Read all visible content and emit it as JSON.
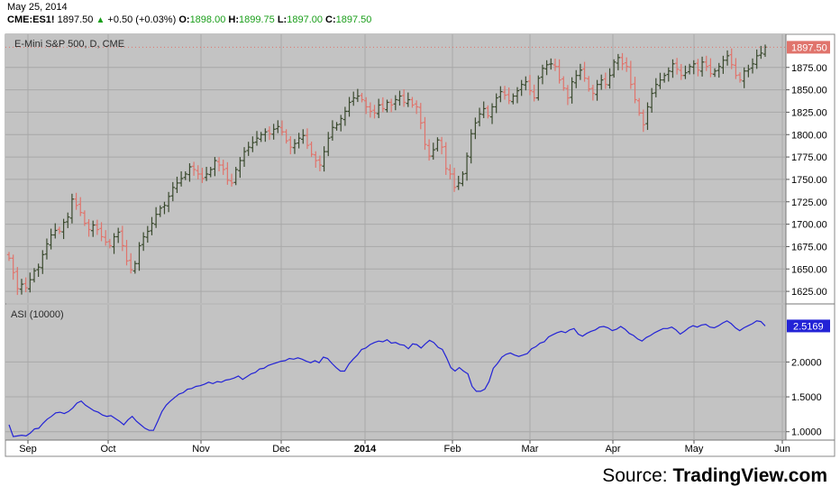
{
  "header": {
    "date": "May 25, 2014",
    "symbol": "CME:ES1!",
    "last": "1897.50",
    "change": "+0.50 (+0.03%)",
    "o_label": "O:",
    "o_value": "1898.00",
    "h_label": "H:",
    "h_value": "1899.75",
    "l_label": "L:",
    "l_value": "1897.00",
    "c_label": "C:",
    "c_value": "1897.50"
  },
  "source": {
    "prefix": "Source: ",
    "brand": "TradingView.com"
  },
  "colors": {
    "bg": "#c3c3c3",
    "up": "#3a4a2e",
    "down": "#e0746c",
    "asi": "#2323d6",
    "price_badge": "#e0746c",
    "asi_badge": "#2323d6"
  },
  "chart_data": [
    {
      "type": "ohlc",
      "title": "E-Mini S&P 500, D, CME",
      "ylim": [
        1612,
        1912
      ],
      "yticks": [
        "1625.00",
        "1650.00",
        "1675.00",
        "1700.00",
        "1725.00",
        "1750.00",
        "1775.00",
        "1800.00",
        "1825.00",
        "1850.00",
        "1875.00"
      ],
      "last_price_label": "1897.50",
      "x_ticks": [
        "Sep",
        "Oct",
        "Nov",
        "Dec",
        "2014",
        "Feb",
        "Mar",
        "Apr",
        "May",
        "Jun"
      ],
      "closes": [
        1662,
        1646,
        1628,
        1633,
        1629,
        1638,
        1648,
        1652,
        1666,
        1678,
        1688,
        1693,
        1692,
        1702,
        1708,
        1728,
        1721,
        1713,
        1701,
        1694,
        1699,
        1694,
        1686,
        1680,
        1676,
        1686,
        1691,
        1676,
        1659,
        1649,
        1656,
        1676,
        1686,
        1692,
        1701,
        1711,
        1718,
        1721,
        1731,
        1741,
        1746,
        1751,
        1756,
        1764,
        1761,
        1756,
        1751,
        1756,
        1761,
        1771,
        1766,
        1761,
        1749,
        1746,
        1761,
        1771,
        1781,
        1786,
        1791,
        1796,
        1800,
        1803,
        1801,
        1806,
        1809,
        1803,
        1793,
        1786,
        1790,
        1796,
        1799,
        1788,
        1778,
        1771,
        1766,
        1781,
        1796,
        1808,
        1811,
        1818,
        1826,
        1836,
        1841,
        1843,
        1839,
        1831,
        1826,
        1824,
        1833,
        1829,
        1836,
        1833,
        1839,
        1843,
        1836,
        1839,
        1833,
        1831,
        1813,
        1789,
        1776,
        1783,
        1794,
        1786,
        1762,
        1756,
        1741,
        1746,
        1756,
        1776,
        1801,
        1813,
        1823,
        1829,
        1821,
        1831,
        1841,
        1848,
        1844,
        1838,
        1843,
        1849,
        1856,
        1859,
        1849,
        1841,
        1863,
        1874,
        1878,
        1879,
        1876,
        1861,
        1852,
        1841,
        1859,
        1866,
        1872,
        1863,
        1851,
        1846,
        1856,
        1861,
        1856,
        1866,
        1881,
        1886,
        1879,
        1876,
        1856,
        1839,
        1824,
        1811,
        1831,
        1846,
        1856,
        1861,
        1866,
        1871,
        1879,
        1873,
        1866,
        1869,
        1876,
        1879,
        1872,
        1881,
        1876,
        1868,
        1871,
        1876,
        1883,
        1888,
        1878,
        1866,
        1861,
        1871,
        1873,
        1879,
        1888,
        1891,
        1897.5
      ]
    },
    {
      "type": "line",
      "title": "ASI (10000)",
      "ylim": [
        0.88,
        2.82
      ],
      "yticks": [
        "1.0000",
        "1.5000",
        "2.0000"
      ],
      "last_value_label": "2.5169",
      "series": [
        {
          "values": [
            1.1,
            0.93,
            0.94,
            0.95,
            0.94,
            0.98,
            1.04,
            1.05,
            1.12,
            1.18,
            1.22,
            1.27,
            1.28,
            1.26,
            1.29,
            1.34,
            1.41,
            1.44,
            1.38,
            1.34,
            1.3,
            1.28,
            1.24,
            1.22,
            1.23,
            1.19,
            1.15,
            1.1,
            1.17,
            1.22,
            1.15,
            1.1,
            1.05,
            1.02,
            1.02,
            1.15,
            1.29,
            1.38,
            1.44,
            1.49,
            1.54,
            1.56,
            1.61,
            1.62,
            1.65,
            1.66,
            1.68,
            1.71,
            1.69,
            1.72,
            1.71,
            1.74,
            1.75,
            1.77,
            1.8,
            1.75,
            1.79,
            1.83,
            1.85,
            1.9,
            1.91,
            1.95,
            1.97,
            1.99,
            2.01,
            2.02,
            2.05,
            2.04,
            2.06,
            2.04,
            2.01,
            1.99,
            2.02,
            1.99,
            2.07,
            2.05,
            1.98,
            1.92,
            1.87,
            1.87,
            1.97,
            2.04,
            2.1,
            2.18,
            2.2,
            2.25,
            2.28,
            2.3,
            2.29,
            2.32,
            2.27,
            2.28,
            2.25,
            2.24,
            2.19,
            2.26,
            2.25,
            2.2,
            2.26,
            2.31,
            2.28,
            2.21,
            2.18,
            2.06,
            1.92,
            1.87,
            1.92,
            1.87,
            1.83,
            1.65,
            1.58,
            1.58,
            1.61,
            1.72,
            1.91,
            1.98,
            2.07,
            2.11,
            2.13,
            2.1,
            2.08,
            2.1,
            2.12,
            2.19,
            2.22,
            2.27,
            2.29,
            2.36,
            2.39,
            2.42,
            2.44,
            2.42,
            2.46,
            2.48,
            2.4,
            2.37,
            2.41,
            2.44,
            2.46,
            2.5,
            2.51,
            2.49,
            2.45,
            2.47,
            2.51,
            2.47,
            2.41,
            2.38,
            2.33,
            2.3,
            2.35,
            2.38,
            2.42,
            2.45,
            2.48,
            2.48,
            2.5,
            2.46,
            2.4,
            2.44,
            2.49,
            2.52,
            2.5,
            2.53,
            2.54,
            2.5,
            2.49,
            2.52,
            2.56,
            2.59,
            2.55,
            2.49,
            2.45,
            2.49,
            2.52,
            2.55,
            2.59,
            2.58,
            2.5169
          ]
        }
      ]
    }
  ]
}
